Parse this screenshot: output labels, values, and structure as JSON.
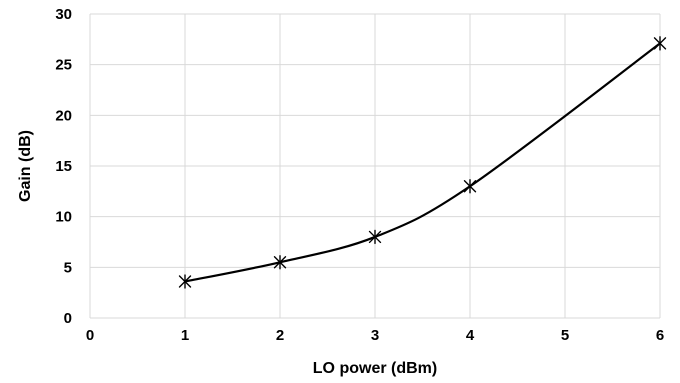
{
  "chart_data": {
    "type": "line",
    "title": "",
    "xlabel": "LO power (dBm)",
    "ylabel": "Gain (dB)",
    "xlim": [
      0,
      6
    ],
    "ylim": [
      0,
      30
    ],
    "x_ticks": [
      "0",
      "1",
      "2",
      "3",
      "4",
      "5",
      "6"
    ],
    "y_ticks": [
      "0",
      "5",
      "10",
      "15",
      "20",
      "25",
      "30"
    ],
    "grid": true,
    "smooth": true,
    "marker": "asterisk",
    "line_color": "#000000",
    "grid_color": "#d9d9d9",
    "series": [
      {
        "x": [
          1,
          2,
          3,
          4,
          6
        ],
        "y": [
          3.6,
          5.5,
          8.0,
          13.0,
          27.1
        ]
      }
    ]
  }
}
